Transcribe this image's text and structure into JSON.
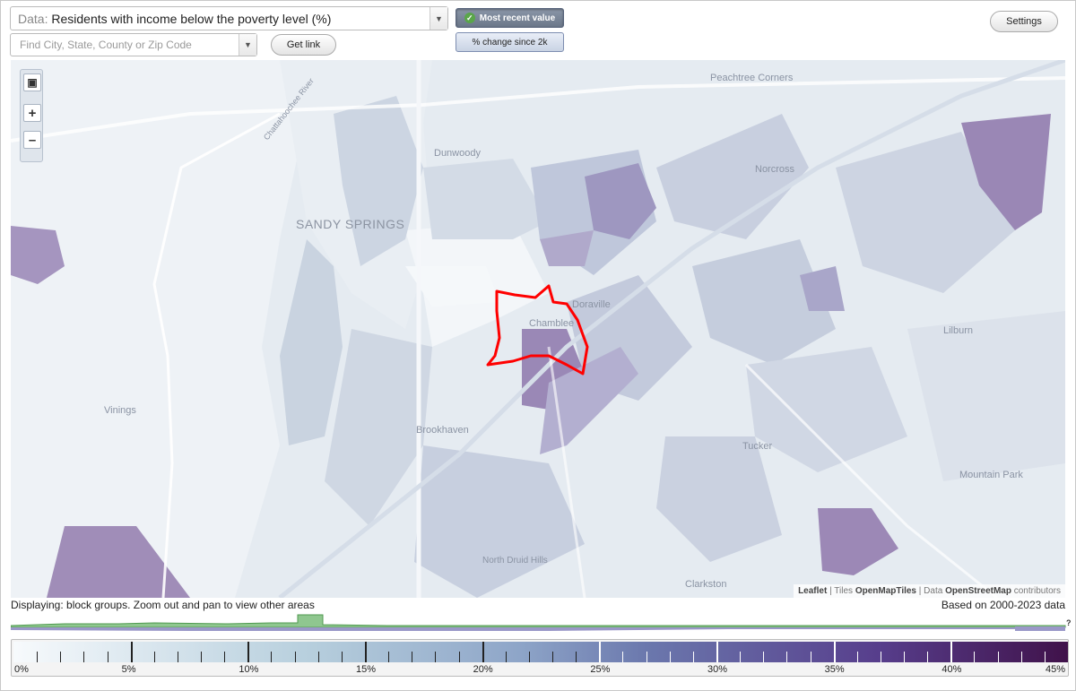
{
  "controls": {
    "data_prefix": "Data: ",
    "data_value": "Residents with income below the poverty level (%)",
    "find_placeholder": "Find City, State, County or Zip Code",
    "get_link": "Get link",
    "most_recent": "Most recent value",
    "change_since": "% change since 2k",
    "settings": "Settings"
  },
  "map": {
    "labels": [
      {
        "text": "Peachtree Corners",
        "kind": "city"
      },
      {
        "text": "Dunwoody",
        "kind": "city"
      },
      {
        "text": "Norcross",
        "kind": "city"
      },
      {
        "text": "SANDY SPRINGS",
        "kind": "major"
      },
      {
        "text": "Doraville",
        "kind": "city"
      },
      {
        "text": "Chamblee",
        "kind": "city"
      },
      {
        "text": "Lilburn",
        "kind": "city"
      },
      {
        "text": "Vinings",
        "kind": "city"
      },
      {
        "text": "Brookhaven",
        "kind": "city"
      },
      {
        "text": "Tucker",
        "kind": "city"
      },
      {
        "text": "Mountain Park",
        "kind": "city"
      },
      {
        "text": "North Druid Hills",
        "kind": "city"
      },
      {
        "text": "Clarkston",
        "kind": "city"
      },
      {
        "text": "Chattahoochee River",
        "kind": "river"
      }
    ],
    "attribution": {
      "leaflet": "Leaflet",
      "tiles_prefix": "Tiles",
      "tiles": "OpenMapTiles",
      "data_prefix": "Data",
      "data": "OpenStreetMap",
      "suffix": "contributors"
    },
    "colors": {
      "base": "#e6ecf2",
      "highlight": "#ff0000"
    }
  },
  "footer": {
    "displaying": "Displaying: block groups. Zoom out and pan to view other areas",
    "based_on": "Based on 2000-2023 data",
    "question": "?"
  },
  "legend": {
    "labels": [
      "0%",
      "5%",
      "10%",
      "15%",
      "20%",
      "25%",
      "30%",
      "35%",
      "40%",
      "45%"
    ],
    "max": 45
  }
}
